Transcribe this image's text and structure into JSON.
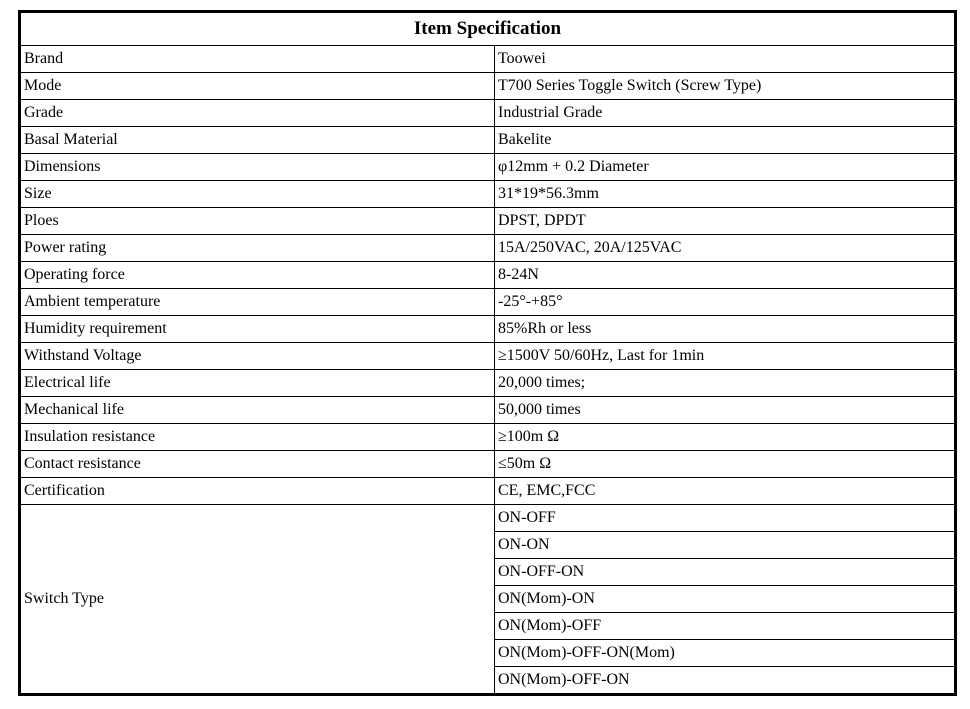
{
  "table": {
    "title": "Item Specification",
    "border_color": "#000000",
    "rows": [
      {
        "label": "Brand",
        "value": "Toowei"
      },
      {
        "label": "Mode",
        "value": "T700 Series Toggle Switch (Screw Type)"
      },
      {
        "label": "Grade",
        "value": "Industrial Grade"
      },
      {
        "label": "Basal Material",
        "value": "Bakelite"
      },
      {
        "label": "Dimensions",
        "value": "φ12mm + 0.2 Diameter"
      },
      {
        "label": "Size",
        "value": "31*19*56.3mm"
      },
      {
        "label": "Ploes",
        "value": "DPST, DPDT"
      },
      {
        "label": "Power rating",
        "value": "15A/250VAC, 20A/125VAC"
      },
      {
        "label": "Operating force",
        "value": "8-24N"
      },
      {
        "label": "Ambient temperature",
        "value": "-25°-+85°"
      },
      {
        "label": "Humidity requirement",
        "value": "85%Rh or less"
      },
      {
        "label": "Withstand Voltage",
        "value": "≥1500V 50/60Hz, Last for 1min"
      },
      {
        "label": "Electrical life",
        "value": "20,000 times;"
      },
      {
        "label": "Mechanical life",
        "value": "50,000 times"
      },
      {
        "label": "Insulation resistance",
        "value": "≥100m Ω"
      },
      {
        "label": "Contact resistance",
        "value": "≤50m Ω"
      },
      {
        "label": "Certification",
        "value": "CE, EMC,FCC"
      }
    ],
    "switch_type": {
      "label": "Switch Type",
      "options": [
        "ON-OFF",
        "ON-ON",
        "ON-OFF-ON",
        "ON(Mom)-ON",
        "ON(Mom)-OFF",
        "ON(Mom)-OFF-ON(Mom)",
        "ON(Mom)-OFF-ON"
      ]
    }
  }
}
